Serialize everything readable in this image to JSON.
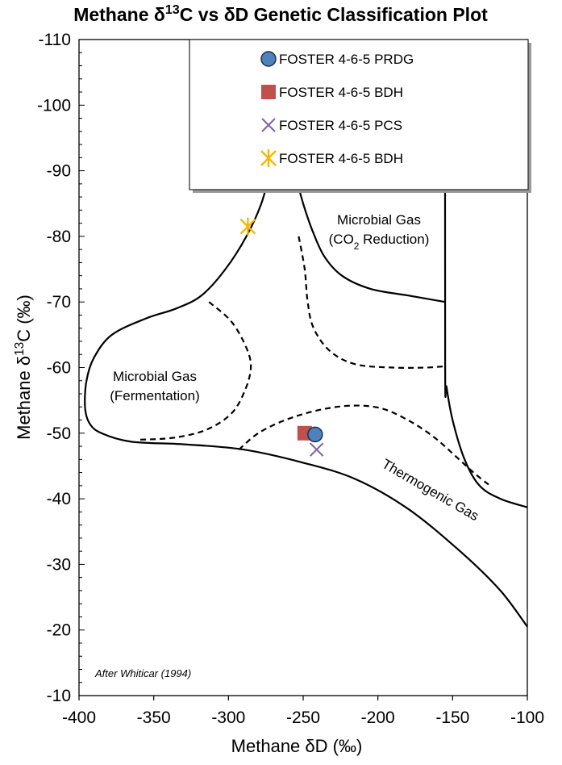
{
  "chart_data": {
    "type": "scatter",
    "title": "Methane δ13C vs δD Genetic Classification Plot",
    "title_parts": {
      "prefix": "Methane δ",
      "sup": "13",
      "suffix": "C vs δD Genetic Classification Plot"
    },
    "xlabel": "Methane δD (‰)",
    "ylabel": "Methane δ13C (‰)",
    "ylabel_parts": {
      "prefix": "Methane  δ",
      "sup": "13",
      "suffix": "C (‰)"
    },
    "xlim": [
      -400,
      -100
    ],
    "ylim": [
      -10,
      -110
    ],
    "x_ticks": [
      -400,
      -350,
      -300,
      -250,
      -200,
      -150,
      -100
    ],
    "y_ticks": [
      -110,
      -100,
      -90,
      -80,
      -70,
      -60,
      -50,
      -40,
      -30,
      -20,
      -10
    ],
    "y_axis_reversed": true,
    "grid": false,
    "legend_position": "top-right",
    "series": [
      {
        "name": "FOSTER 4-6-5 PRDG",
        "marker": "circle",
        "color": "#4f81bd",
        "points": [
          [
            -242,
            -49.8
          ]
        ]
      },
      {
        "name": "FOSTER 4-6-5 BDH",
        "marker": "square",
        "color": "#c0504d",
        "points": [
          [
            -249,
            -50.0
          ]
        ]
      },
      {
        "name": "FOSTER 4-6-5 PCS",
        "marker": "x",
        "color": "#8064a2",
        "points": [
          [
            -241,
            -47.5
          ]
        ]
      },
      {
        "name": "FOSTER 4-6-5 BDH",
        "marker": "asterisk",
        "color": "#f5b800",
        "points": [
          [
            -287,
            -81.5
          ]
        ]
      }
    ],
    "regions": [
      {
        "label_lines": [
          "Microbial Gas",
          "(Fermentation)"
        ]
      },
      {
        "label_lines": [
          "Microbial Gas",
          "(CO₂ Reduction)"
        ]
      },
      {
        "label_lines": [
          "Thermogenic Gas"
        ]
      }
    ],
    "boundaries": {
      "solid": [
        [
          [
            -282,
            -110
          ],
          [
            -276,
            -105
          ],
          [
            -268,
            -100
          ],
          [
            -262,
            -95
          ],
          [
            -256,
            -90
          ],
          [
            -250,
            -85
          ],
          [
            -244,
            -81
          ],
          [
            -236,
            -77
          ],
          [
            -224,
            -74
          ],
          [
            -205,
            -72
          ],
          [
            -180,
            -71
          ],
          [
            -155,
            -70
          ]
        ],
        [
          [
            -155,
            -110
          ],
          [
            -155,
            -60
          ],
          [
            -154,
            -57
          ],
          [
            -150,
            -52
          ],
          [
            -142,
            -46
          ],
          [
            -132,
            -42
          ],
          [
            -118,
            -40
          ],
          [
            -100,
            -38.7
          ]
        ],
        [
          [
            -272,
            -90
          ],
          [
            -278,
            -85
          ],
          [
            -288,
            -80
          ],
          [
            -302,
            -75
          ],
          [
            -318,
            -71
          ],
          [
            -335,
            -69
          ],
          [
            -355,
            -67.5
          ],
          [
            -378,
            -65
          ],
          [
            -390,
            -61.5
          ],
          [
            -395,
            -58
          ],
          [
            -396,
            -54
          ],
          [
            -393,
            -51.5
          ],
          [
            -385,
            -50
          ],
          [
            -365,
            -48.7
          ],
          [
            -330,
            -48.3
          ],
          [
            -290,
            -47.5
          ],
          [
            -250,
            -45.5
          ],
          [
            -215,
            -43
          ],
          [
            -180,
            -38.5
          ],
          [
            -145,
            -32
          ],
          [
            -118,
            -26
          ],
          [
            -100,
            -20.5
          ]
        ]
      ],
      "dashed": [
        [
          [
            -313,
            -70
          ],
          [
            -298,
            -67
          ],
          [
            -288,
            -63
          ],
          [
            -285,
            -60
          ],
          [
            -289,
            -56.5
          ],
          [
            -298,
            -53
          ],
          [
            -315,
            -50.5
          ],
          [
            -337,
            -49.3
          ],
          [
            -360,
            -49
          ]
        ],
        [
          [
            -253,
            -80
          ],
          [
            -249,
            -75
          ],
          [
            -247,
            -70
          ],
          [
            -243,
            -66
          ],
          [
            -232,
            -62.5
          ],
          [
            -215,
            -60.5
          ],
          [
            -190,
            -60
          ],
          [
            -168,
            -60
          ],
          [
            -155,
            -60.2
          ]
        ],
        [
          [
            -293,
            -47.5
          ],
          [
            -280,
            -50
          ],
          [
            -262,
            -52
          ],
          [
            -240,
            -53.5
          ],
          [
            -218,
            -54.2
          ],
          [
            -198,
            -53.8
          ],
          [
            -180,
            -52
          ],
          [
            -163,
            -49.5
          ],
          [
            -148,
            -46.5
          ],
          [
            -136,
            -44
          ],
          [
            -125,
            -42
          ]
        ]
      ]
    },
    "annotation": "After Whiticar (1994)"
  }
}
